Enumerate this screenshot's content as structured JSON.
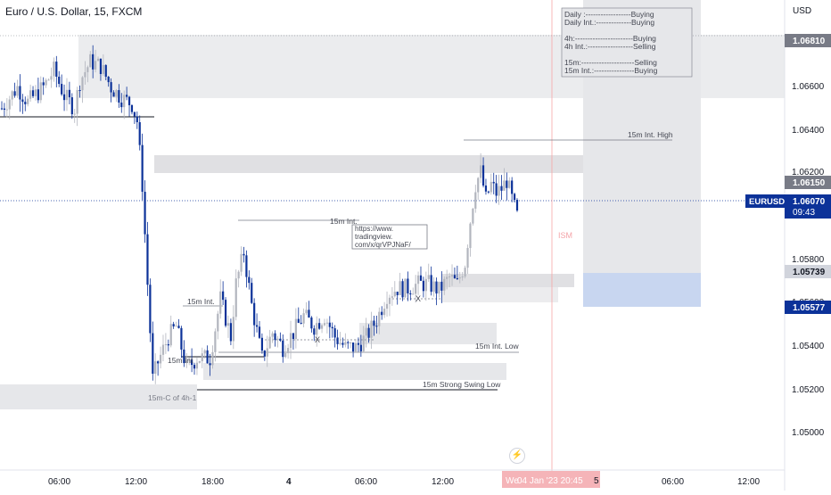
{
  "header": {
    "title": "Euro / U.S. Dollar, 15, FXCM"
  },
  "price_axis": {
    "currency": "USD",
    "labels": [
      "1.06600",
      "1.06400",
      "1.06200",
      "1.05800",
      "1.05400",
      "1.05200",
      "1.05000"
    ],
    "partial_label": "1.05600",
    "tags": [
      {
        "name": "level-high",
        "text": "1.06810",
        "bg": "#787b86",
        "fg": "#ffffff"
      },
      {
        "name": "level-mid",
        "text": "1.06150",
        "bg": "#787b86",
        "fg": "#ffffff"
      },
      {
        "name": "level-lowbox",
        "text": "1.05739",
        "bg": "#d1d4dc",
        "fg": "#131722"
      },
      {
        "name": "level-blue",
        "text": "1.05577",
        "bg": "#0c3299",
        "fg": "#ffffff"
      }
    ],
    "last_price": {
      "symbol": "EURUSD",
      "price": "1.06070",
      "countdown": "09:43",
      "color": "#0c3299"
    }
  },
  "time_axis": {
    "labels": [
      "06:00",
      "12:00",
      "18:00",
      "4",
      "06:00",
      "12:00",
      "06:00",
      "12:00"
    ],
    "cursor_label": "04 Jan '23   20:45",
    "cursor_label_prefix": "We",
    "cursor_label_suffix": "5"
  },
  "bias_panel": {
    "lines": [
      "Daily :------------------Buying",
      "Daily Int.:--------------Buying",
      "",
      "4h:-----------------------Buying",
      "4h Int.:------------------Selling",
      "",
      "15m:---------------------Selling",
      "15m Int.:----------------Buying"
    ]
  },
  "annotations": {
    "int_high": "15m Int. High",
    "int_low": "15m Int. Low",
    "strong_low": "15m Strong Swing Low",
    "int_left": "15m Int.",
    "int_mid": "15m Int.",
    "int_bottom": "15m Int",
    "cof4h": "15m-C of 4h-1",
    "x1": "X",
    "x2": "X",
    "ism": "ISM",
    "url_lines": [
      "https://www.",
      "tradingview.",
      "com/x/qrVPJNaF/"
    ]
  },
  "chart_data": {
    "type": "candlestick",
    "symbol": "EURUSD",
    "timeframe": "15",
    "ylim": [
      1.049,
      1.0705
    ],
    "grid": false,
    "last_price": 1.0607,
    "levels": [
      1.0681,
      1.0615,
      1.05739,
      1.05577
    ],
    "path_anchors": [
      [
        0,
        1.0658
      ],
      [
        6,
        1.0668
      ],
      [
        10,
        1.0661
      ],
      [
        16,
        1.0668
      ],
      [
        20,
        1.0676
      ],
      [
        24,
        1.0664
      ],
      [
        28,
        1.0658
      ],
      [
        30,
        1.0671
      ],
      [
        34,
        1.068
      ],
      [
        38,
        1.0678
      ],
      [
        42,
        1.0668
      ],
      [
        46,
        1.0663
      ],
      [
        50,
        1.066
      ],
      [
        52,
        1.0652
      ],
      [
        54,
        1.0622
      ],
      [
        56,
        1.0575
      ],
      [
        58,
        1.053
      ],
      [
        60,
        1.0538
      ],
      [
        64,
        1.055
      ],
      [
        67,
        1.0555
      ],
      [
        71,
        1.0535
      ],
      [
        75,
        1.054
      ],
      [
        80,
        1.054
      ],
      [
        84,
        1.0568
      ],
      [
        88,
        1.055
      ],
      [
        90,
        1.0575
      ],
      [
        93,
        1.059
      ],
      [
        96,
        1.0565
      ],
      [
        100,
        1.054
      ],
      [
        104,
        1.0552
      ],
      [
        108,
        1.0545
      ],
      [
        112,
        1.0552
      ],
      [
        116,
        1.056
      ],
      [
        120,
        1.0555
      ],
      [
        124,
        1.056
      ],
      [
        128,
        1.055
      ],
      [
        132,
        1.0545
      ],
      [
        136,
        1.0545
      ],
      [
        140,
        1.055
      ],
      [
        144,
        1.0558
      ],
      [
        148,
        1.057
      ],
      [
        152,
        1.0573
      ],
      [
        156,
        1.0573
      ],
      [
        160,
        1.0575
      ],
      [
        164,
        1.0575
      ],
      [
        168,
        1.0572
      ],
      [
        172,
        1.0578
      ],
      [
        175,
        1.0575
      ],
      [
        178,
        1.0585
      ],
      [
        180,
        1.0605
      ],
      [
        182,
        1.0622
      ],
      [
        184,
        1.0628
      ],
      [
        186,
        1.0615
      ],
      [
        188,
        1.0622
      ],
      [
        190,
        1.0618
      ],
      [
        192,
        1.062
      ],
      [
        194,
        1.0624
      ],
      [
        196,
        1.0615
      ],
      [
        198,
        1.0607
      ]
    ],
    "candle_count": 199
  }
}
